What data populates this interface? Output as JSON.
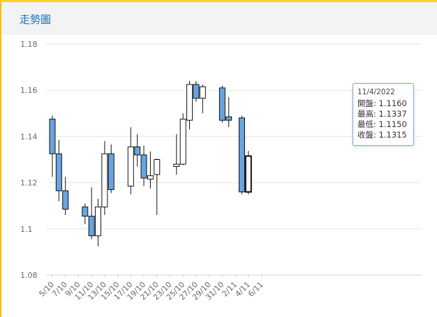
{
  "header": {
    "title": "走勢圖"
  },
  "tooltip": {
    "date": "11/4/2022",
    "open_label": "開盤",
    "open": "1.1160",
    "high_label": "最高",
    "high": "1.1337",
    "low_label": "最低",
    "low": "1.1150",
    "close_label": "收盤",
    "close": "1.1315"
  },
  "colors": {
    "down": "#6aa3e0",
    "up": "#ffffff",
    "accent": "#1d70b8"
  },
  "chart_data": {
    "type": "candlestick",
    "ylim": [
      1.08,
      1.18
    ],
    "yticks": [
      "1.18",
      "1.16",
      "1.14",
      "1.12",
      "1.1",
      "1.08"
    ],
    "xticks": [
      "5/10",
      "7/10",
      "9/10",
      "11/10",
      "13/10",
      "15/10",
      "17/10",
      "19/10",
      "21/10",
      "23/10",
      "25/10",
      "27/10",
      "29/10",
      "31/10",
      "2/11",
      "4/11",
      "6/11"
    ],
    "candles": [
      {
        "date": "5/10",
        "open": 1.1475,
        "high": 1.149,
        "low": 1.1225,
        "close": 1.1325
      },
      {
        "date": "6/10",
        "open": 1.1325,
        "high": 1.1385,
        "low": 1.112,
        "close": 1.1165
      },
      {
        "date": "7/10",
        "open": 1.1165,
        "high": 1.1225,
        "low": 1.106,
        "close": 1.1085
      },
      {
        "date": "10/10",
        "open": 1.1095,
        "high": 1.111,
        "low": 1.102,
        "close": 1.1055
      },
      {
        "date": "11/10",
        "open": 1.1055,
        "high": 1.118,
        "low": 1.0955,
        "close": 1.097
      },
      {
        "date": "12/10",
        "open": 1.097,
        "high": 1.113,
        "low": 1.0925,
        "close": 1.1095
      },
      {
        "date": "13/10",
        "open": 1.1095,
        "high": 1.138,
        "low": 1.106,
        "close": 1.1325
      },
      {
        "date": "14/10",
        "open": 1.1325,
        "high": 1.1365,
        "low": 1.1155,
        "close": 1.117
      },
      {
        "date": "17/10",
        "open": 1.1185,
        "high": 1.144,
        "low": 1.115,
        "close": 1.1355
      },
      {
        "date": "18/10",
        "open": 1.1355,
        "high": 1.141,
        "low": 1.127,
        "close": 1.132
      },
      {
        "date": "19/10",
        "open": 1.132,
        "high": 1.136,
        "low": 1.1185,
        "close": 1.122
      },
      {
        "date": "20/10",
        "open": 1.1215,
        "high": 1.1335,
        "low": 1.1175,
        "close": 1.123
      },
      {
        "date": "21/10",
        "open": 1.1235,
        "high": 1.1305,
        "low": 1.106,
        "close": 1.13
      },
      {
        "date": "24/10",
        "open": 1.127,
        "high": 1.141,
        "low": 1.1235,
        "close": 1.128
      },
      {
        "date": "25/10",
        "open": 1.128,
        "high": 1.15,
        "low": 1.1275,
        "close": 1.1475
      },
      {
        "date": "26/10",
        "open": 1.147,
        "high": 1.164,
        "low": 1.143,
        "close": 1.1625
      },
      {
        "date": "27/10",
        "open": 1.1625,
        "high": 1.164,
        "low": 1.155,
        "close": 1.1565
      },
      {
        "date": "28/10",
        "open": 1.1565,
        "high": 1.1625,
        "low": 1.15,
        "close": 1.1615
      },
      {
        "date": "31/10",
        "open": 1.161,
        "high": 1.162,
        "low": 1.146,
        "close": 1.147
      },
      {
        "date": "1/11",
        "open": 1.1485,
        "high": 1.157,
        "low": 1.144,
        "close": 1.147
      },
      {
        "date": "3/11",
        "open": 1.148,
        "high": 1.149,
        "low": 1.115,
        "close": 1.116
      },
      {
        "date": "4/11",
        "open": 1.116,
        "high": 1.1337,
        "low": 1.115,
        "close": 1.1315
      }
    ]
  }
}
